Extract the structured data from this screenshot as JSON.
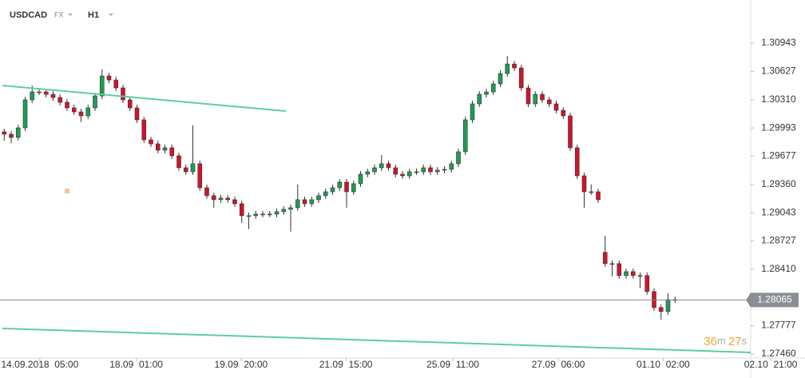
{
  "header": {
    "symbol": "USDCAD",
    "market": "FX",
    "timeframe": "H1"
  },
  "chart_data": {
    "type": "candlestick",
    "open": [
      1.2995,
      1.29923,
      1.29887,
      1.29994,
      1.30308,
      1.30397,
      1.30397,
      1.3037,
      1.30334,
      1.30281,
      1.30218,
      1.30173,
      1.30129,
      1.30218,
      1.30352,
      1.30576,
      1.30531,
      1.30442,
      1.30308,
      1.30218,
      1.30084,
      1.2986,
      1.29815,
      1.29744,
      1.29771,
      1.29681,
      1.29547,
      1.29502,
      1.29592,
      1.29323,
      1.29234,
      1.29189,
      1.29207,
      1.29189,
      1.29144,
      1.2901,
      1.2901,
      1.29028,
      1.29028,
      1.29028,
      1.29055,
      1.29081,
      1.29099,
      1.29189,
      1.29144,
      1.29189,
      1.29234,
      1.29278,
      1.29323,
      1.29386,
      1.29278,
      1.29368,
      1.29475,
      1.29502,
      1.29547,
      1.29592,
      1.29547,
      1.29475,
      1.29457,
      1.29502,
      1.29502,
      1.29547,
      1.29502,
      1.2952,
      1.29529,
      1.29592,
      1.29726,
      1.30084,
      1.30263,
      1.3037,
      1.30397,
      1.30487,
      1.30603,
      1.3071,
      1.30666,
      1.30442,
      1.30263,
      1.3037,
      1.30308,
      1.30263,
      1.30191,
      1.30129,
      1.29771,
      1.29457,
      1.29278,
      1.29278,
      1.286,
      1.28473,
      1.28473,
      1.28339,
      1.28383,
      1.28339,
      1.28339,
      1.2816,
      1.27981,
      1.27936,
      1.2807
    ],
    "high": [
      1.29985,
      1.29958,
      1.30029,
      1.30343,
      1.3047,
      1.30432,
      1.30432,
      1.30405,
      1.30369,
      1.30316,
      1.30253,
      1.30208,
      1.30253,
      1.30387,
      1.3065,
      1.30611,
      1.30566,
      1.30477,
      1.30343,
      1.30253,
      1.30119,
      1.29895,
      1.2985,
      1.29806,
      1.29806,
      1.29716,
      1.29582,
      1.30021,
      1.29627,
      1.29358,
      1.29269,
      1.29242,
      1.29242,
      1.29224,
      1.29179,
      1.29045,
      1.29063,
      1.29063,
      1.29063,
      1.2909,
      1.29116,
      1.29134,
      1.2936,
      1.29224,
      1.29224,
      1.29269,
      1.29313,
      1.29358,
      1.29421,
      1.29421,
      1.29403,
      1.2951,
      1.29537,
      1.29582,
      1.2969,
      1.29627,
      1.29582,
      1.2951,
      1.29537,
      1.29537,
      1.29582,
      1.29582,
      1.29555,
      1.29564,
      1.29627,
      1.29761,
      1.30119,
      1.30298,
      1.30405,
      1.30432,
      1.30522,
      1.30638,
      1.308,
      1.30745,
      1.30701,
      1.30477,
      1.30405,
      1.30405,
      1.30343,
      1.30298,
      1.30226,
      1.30164,
      1.29806,
      1.29492,
      1.2936,
      1.29313,
      1.28786,
      1.28508,
      1.28508,
      1.28418,
      1.28418,
      1.28374,
      1.28374,
      1.28195,
      1.28016,
      1.2814,
      1.28105
    ],
    "low": [
      1.2985,
      1.2982,
      1.29852,
      1.29959,
      1.30273,
      1.30362,
      1.30335,
      1.30299,
      1.30246,
      1.30183,
      1.30138,
      1.3006,
      1.30094,
      1.30183,
      1.30317,
      1.30496,
      1.30407,
      1.30273,
      1.30183,
      1.30049,
      1.29825,
      1.2978,
      1.29709,
      1.29709,
      1.29646,
      1.29512,
      1.29467,
      1.29467,
      1.29288,
      1.29199,
      1.291,
      1.29154,
      1.29154,
      1.29109,
      1.2893,
      1.2886,
      1.28975,
      1.28993,
      1.28993,
      1.28993,
      1.2902,
      1.28831,
      1.29064,
      1.29109,
      1.29109,
      1.29154,
      1.29199,
      1.29243,
      1.29288,
      1.291,
      1.29243,
      1.29333,
      1.2944,
      1.29467,
      1.29512,
      1.29512,
      1.2944,
      1.29422,
      1.29422,
      1.29467,
      1.29467,
      1.29467,
      1.29467,
      1.29485,
      1.29494,
      1.29557,
      1.29691,
      1.30049,
      1.30228,
      1.30335,
      1.30362,
      1.30452,
      1.30568,
      1.30631,
      1.30407,
      1.30228,
      1.30228,
      1.30273,
      1.30228,
      1.30156,
      1.30094,
      1.29736,
      1.29422,
      1.291,
      1.29243,
      1.29154,
      1.28438,
      1.2833,
      1.28304,
      1.28304,
      1.28304,
      1.282,
      1.28125,
      1.27946,
      1.27846,
      1.27901,
      1.2803
    ],
    "close": [
      1.29923,
      1.29887,
      1.29994,
      1.30308,
      1.30397,
      1.30397,
      1.3037,
      1.30334,
      1.30281,
      1.30218,
      1.30173,
      1.30129,
      1.30218,
      1.30352,
      1.30576,
      1.30531,
      1.30442,
      1.30308,
      1.30218,
      1.30084,
      1.2986,
      1.29815,
      1.29744,
      1.29771,
      1.29681,
      1.29547,
      1.29502,
      1.29592,
      1.29323,
      1.29234,
      1.29189,
      1.29207,
      1.29189,
      1.29144,
      1.2901,
      1.2901,
      1.29028,
      1.29028,
      1.29028,
      1.29055,
      1.29081,
      1.29099,
      1.29189,
      1.29144,
      1.29189,
      1.29234,
      1.29278,
      1.29323,
      1.29386,
      1.29278,
      1.29368,
      1.29475,
      1.29502,
      1.29547,
      1.29592,
      1.29547,
      1.29475,
      1.29457,
      1.29502,
      1.29502,
      1.29547,
      1.29502,
      1.2952,
      1.29529,
      1.29592,
      1.29726,
      1.30084,
      1.30263,
      1.3037,
      1.30397,
      1.30487,
      1.30603,
      1.3071,
      1.30666,
      1.30442,
      1.30263,
      1.3037,
      1.30308,
      1.30263,
      1.30191,
      1.30129,
      1.29771,
      1.29457,
      1.29278,
      1.29278,
      1.29189,
      1.28473,
      1.28473,
      1.28339,
      1.28383,
      1.28339,
      1.28339,
      1.2816,
      1.27981,
      1.27936,
      1.2807,
      1.28065
    ],
    "up_color": "#1f9d55",
    "down_color": "#d0142c",
    "xlim": [
      -0.6,
      114.6
    ],
    "xticks": [
      {
        "value": 5.1,
        "label": "14.09.2018  05:00"
      },
      {
        "value": 18.9,
        "label": "18.09  01:00"
      },
      {
        "value": 33.9,
        "label": "19.09  20:00"
      },
      {
        "value": 48.9,
        "label": "21.09  15:00"
      },
      {
        "value": 64.2,
        "label": "25.09  11:00"
      },
      {
        "value": 79.3,
        "label": "27.09  06:00"
      },
      {
        "value": 94.3,
        "label": "01.10  02:00"
      },
      {
        "value": 109.7,
        "label": "02.10  21:00"
      }
    ],
    "ylim": [
      1.27415,
      1.31427
    ],
    "yticks": [
      1.30943,
      1.30627,
      {
        "value": 1.3031,
        "label": "1.30310"
      },
      1.29993,
      1.29677,
      {
        "value": 1.2936,
        "label": "1.29360"
      },
      1.29043,
      1.28727,
      {
        "value": 1.2841,
        "label": "1.28410"
      },
      1.27777,
      {
        "value": 1.2746,
        "label": "1.27460"
      }
    ],
    "grid": false,
    "last_price": 1.28065,
    "countdown": [
      "36",
      "m",
      "27",
      "s"
    ]
  }
}
